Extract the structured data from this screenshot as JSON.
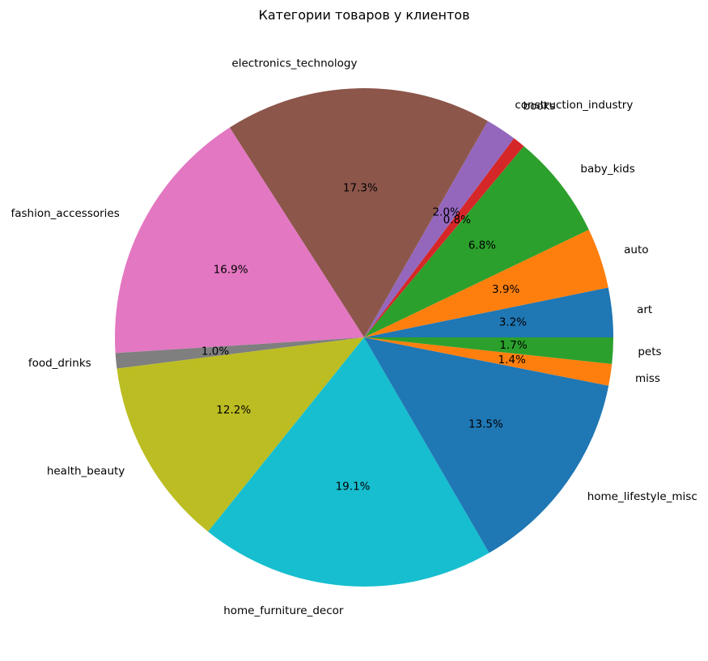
{
  "chart_data": {
    "type": "pie",
    "title": "Категории товаров у клиентов",
    "slices": [
      {
        "label": "art",
        "value": 3.2,
        "pct_label": "3.2%",
        "color": "#1f77b4"
      },
      {
        "label": "auto",
        "value": 3.9,
        "pct_label": "3.9%",
        "color": "#ff7f0e"
      },
      {
        "label": "baby_kids",
        "value": 6.8,
        "pct_label": "6.8%",
        "color": "#2ca02c"
      },
      {
        "label": "books",
        "value": 0.8,
        "pct_label": "0.8%",
        "color": "#d62728"
      },
      {
        "label": "construction_industry",
        "value": 2.0,
        "pct_label": "2.0%",
        "color": "#9467bd"
      },
      {
        "label": "electronics_technology",
        "value": 17.3,
        "pct_label": "17.3%",
        "color": "#8c564b"
      },
      {
        "label": "fashion_accessories",
        "value": 16.9,
        "pct_label": "16.9%",
        "color": "#e377c2"
      },
      {
        "label": "food_drinks",
        "value": 1.0,
        "pct_label": "1.0%",
        "color": "#7f7f7f"
      },
      {
        "label": "health_beauty",
        "value": 12.2,
        "pct_label": "12.2%",
        "color": "#bcbd22"
      },
      {
        "label": "home_furniture_decor",
        "value": 19.1,
        "pct_label": "19.1%",
        "color": "#17becf"
      },
      {
        "label": "home_lifestyle_misc",
        "value": 13.5,
        "pct_label": "13.5%",
        "color": "#1f77b4"
      },
      {
        "label": "miss",
        "value": 1.4,
        "pct_label": "1.4%",
        "color": "#ff7f0e"
      },
      {
        "label": "pets",
        "value": 1.7,
        "pct_label": "1.7%",
        "color": "#2ca02c"
      }
    ],
    "start_angle_deg": 0,
    "direction": "counterclockwise"
  }
}
